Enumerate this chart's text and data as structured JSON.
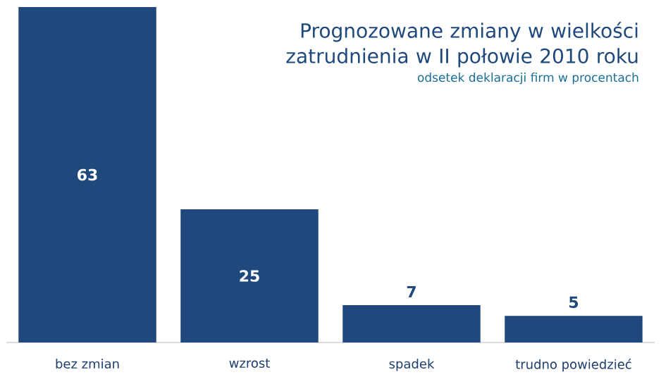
{
  "chart_data": {
    "type": "bar",
    "title": "Prognozowane zmiany w wielkości zatrudnienia w II połowie 2010 roku",
    "subtitle": "odsetek deklaracji firm w procentach",
    "categories": [
      "bez zmian",
      "wzrost",
      "spadek",
      "trudno  powiedzieć"
    ],
    "values": [
      63,
      25,
      7,
      5
    ],
    "color": "#1f497d",
    "data_labels": true,
    "tick_labels": "x"
  }
}
